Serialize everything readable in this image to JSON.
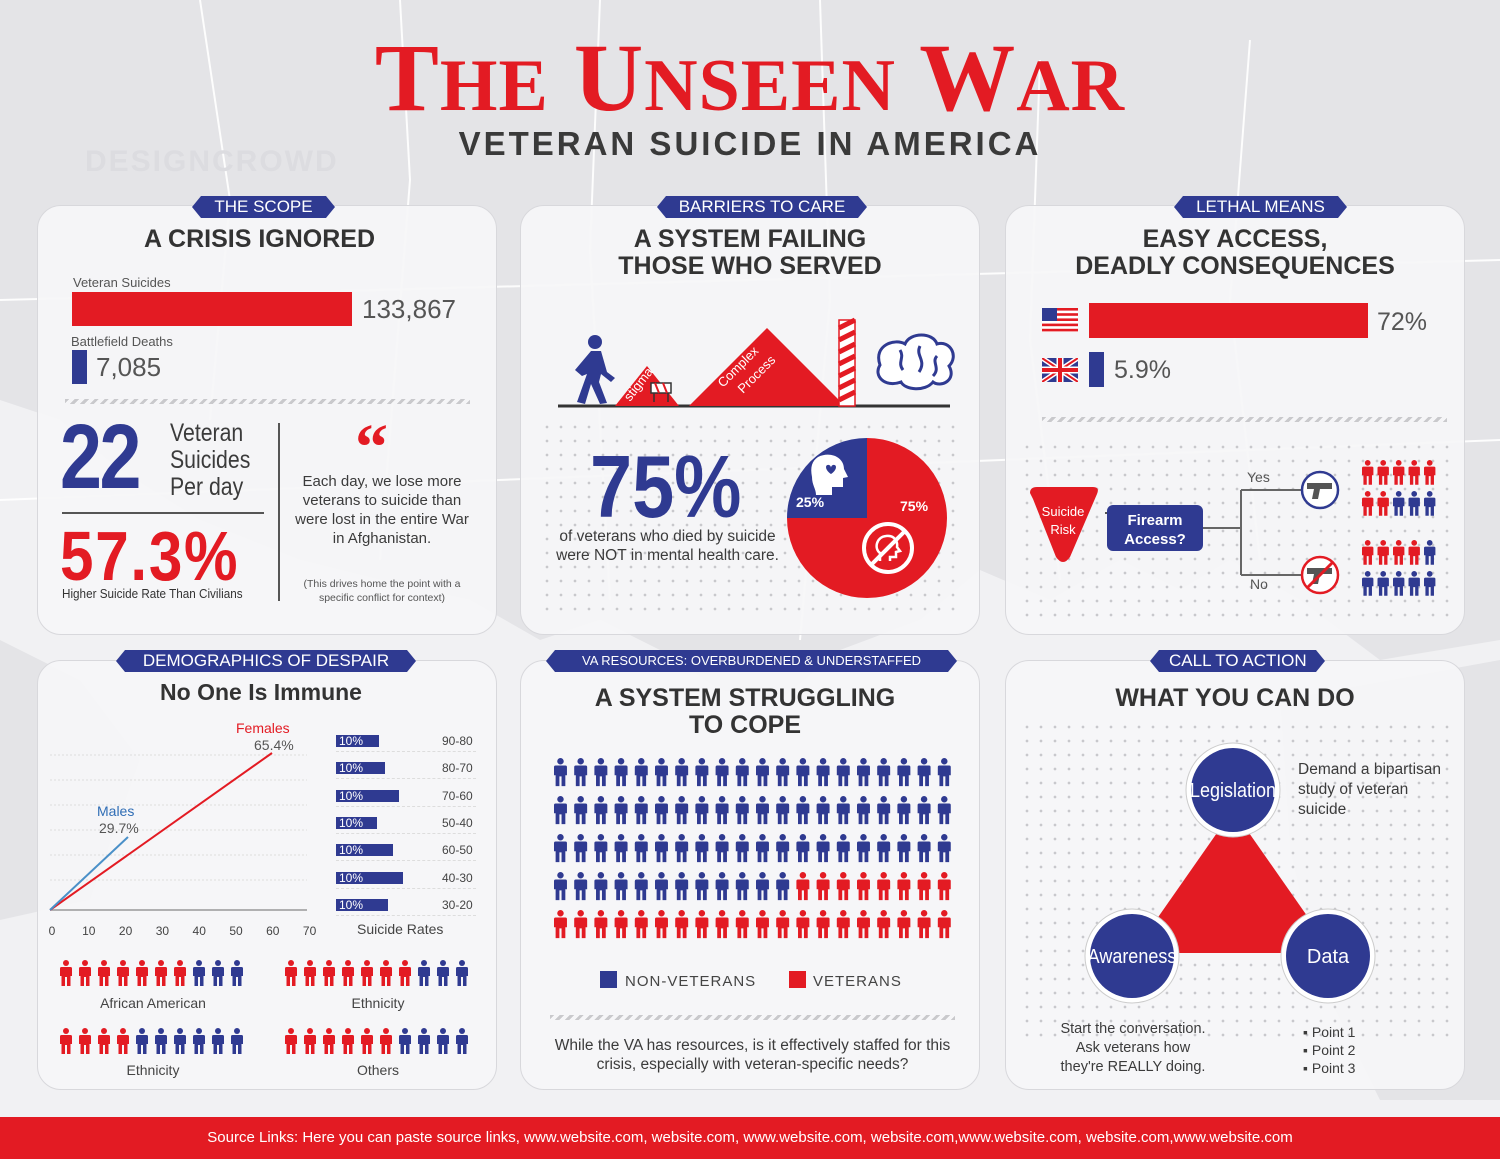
{
  "header": {
    "title_t": "T",
    "title_he": "HE",
    "title_u": "U",
    "title_nseen": "NSEEN",
    "title_w": "W",
    "title_ar": "AR",
    "subtitle": "VETERAN SUICIDE IN AMERICA",
    "watermark": "DESIGNCROWD"
  },
  "colors": {
    "red": "#e31b23",
    "blue": "#2f3a91",
    "gray": "#3b3b3b"
  },
  "scope": {
    "ribbon": "THE SCOPE",
    "title": "A CRISIS IGNORED",
    "veteran_label": "Veteran Suicides",
    "veteran_value": "133,867",
    "battlefield_label": "Battlefield Deaths",
    "battlefield_value": "7,085",
    "daily_number": "22",
    "daily_line1": "Veteran",
    "daily_line2": "Suicides",
    "daily_line3": "Per day",
    "rate_number": "57.3%",
    "rate_caption": "Higher Suicide Rate Than Civilians",
    "quote_mark": "“",
    "quote": "Each day, we lose more veterans to suicide than were lost in the entire War in Afghanistan.",
    "quote_note": "(This drives home the point with a specific conflict for context)"
  },
  "barriers": {
    "ribbon": "BARRIERS TO CARE",
    "title_line1": "A SYSTEM FAILING",
    "title_line2": "THOSE WHO SERVED",
    "stigma_label": "stigma",
    "complex_label1": "Complex",
    "complex_label2": "Process",
    "big_number": "75%",
    "caption": "of veterans who died by suicide were NOT in mental health care.",
    "pie_blue_label": "25%",
    "pie_red_label": "75%",
    "pie_blue_value": 25,
    "pie_red_value": 75
  },
  "lethal": {
    "ribbon": "LETHAL MEANS",
    "title_line1": "EASY ACCESS,",
    "title_line2": "DEADLY CONSEQUENCES",
    "us_value": "72%",
    "us_fraction": 72,
    "uk_value": "5.9%",
    "uk_fraction": 5.9,
    "risk_line1": "Suicide",
    "risk_line2": "Risk",
    "access_line1": "Firearm",
    "access_line2": "Access?",
    "yes_label": "Yes",
    "no_label": "No"
  },
  "demographics": {
    "ribbon": "DEMOGRAPHICS OF DESPAIR",
    "title": "No One Is Immune",
    "females_label": "Females",
    "females_value": "65.4%",
    "males_label": "Males",
    "males_value": "29.7%",
    "x_ticks": [
      "0",
      "10",
      "20",
      "30",
      "40",
      "50",
      "60",
      "70"
    ],
    "age_bars": [
      {
        "pct": "10%",
        "age": "90-80",
        "len": 0.45
      },
      {
        "pct": "10%",
        "age": "80-70",
        "len": 0.52
      },
      {
        "pct": "10%",
        "age": "70-60",
        "len": 0.66
      },
      {
        "pct": "10%",
        "age": "50-40",
        "len": 0.43
      },
      {
        "pct": "10%",
        "age": "60-50",
        "len": 0.6
      },
      {
        "pct": "10%",
        "age": "40-30",
        "len": 0.7
      },
      {
        "pct": "10%",
        "age": "30-20",
        "len": 0.55
      }
    ],
    "age_caption": "Suicide Rates",
    "group1_label": "African American",
    "group2_label": "Ethnicity",
    "group3_label": "Ethnicity",
    "group4_label": "Others"
  },
  "va": {
    "ribbon": "VA RESOURCES: OVERBURDENED & UNDERSTAFFED",
    "title_line1": "A SYSTEM STRUGGLING",
    "title_line2": "TO COPE",
    "legend_non": "NON-VETERANS",
    "legend_vet": "VETERANS",
    "caption": "While the VA has resources, is it effectively staffed for this crisis, especially with veteran-specific needs?"
  },
  "action": {
    "ribbon": "CALL TO ACTION",
    "title": "WHAT YOU CAN DO",
    "legislation": "Legislation",
    "legislation_text": "Demand a bipartisan study of veteran suicide",
    "awareness": "Awareness",
    "awareness_text1": "Start the conversation.",
    "awareness_text2": "Ask veterans how",
    "awareness_text3": "they're REALLY doing.",
    "data": "Data",
    "points": [
      "▪ Point 1",
      "▪ Point 2",
      "▪ Point 3"
    ]
  },
  "footer": {
    "text": "Source Links: Here you can paste source links, www.website.com, website.com, www.website.com, website.com,www.website.com, website.com,www.website.com"
  }
}
